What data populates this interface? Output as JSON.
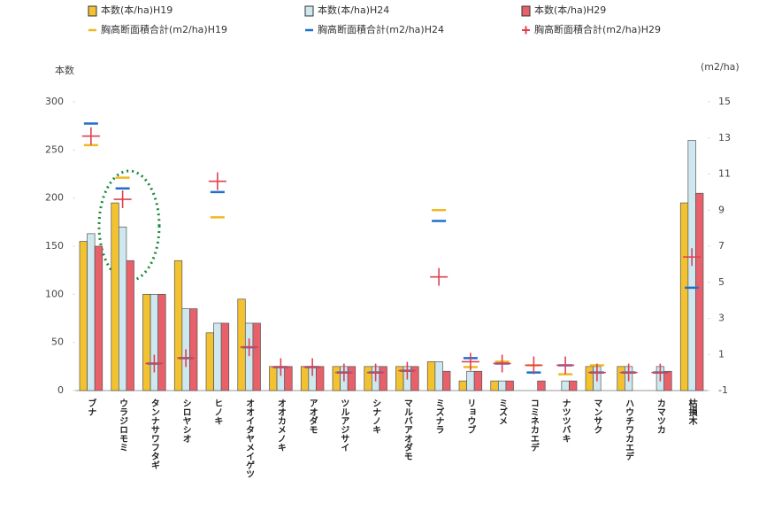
{
  "chart_data": {
    "type": "bar",
    "y_label": "本数",
    "y2_label": "(m2/ha)",
    "categories": [
      "ブナ",
      "ウラジロモミ",
      "タンナサワフタギ",
      "シロヤシオ",
      "ヒノキ",
      "オオイタヤメイゲツ",
      "オオカメノキ",
      "アオダモ",
      "ツルアジサイ",
      "シナノキ",
      "マルバアオダモ",
      "ミズナラ",
      "リョウブ",
      "ミズメ",
      "コミネカエデ",
      "ナツツバキ",
      "マンサク",
      "ハウチワカエデ",
      "カマツカ",
      "枯損木"
    ],
    "series": [
      {
        "name": "本数(本/ha)H19",
        "color": "#f2c230",
        "mark": "bar",
        "values": [
          155,
          195,
          100,
          135,
          60,
          95,
          25,
          25,
          25,
          25,
          25,
          30,
          10,
          10,
          0,
          0,
          25,
          25,
          0,
          195
        ]
      },
      {
        "name": "本数(本/ha)H24",
        "color": "#cfe7ef",
        "mark": "bar",
        "values": [
          163,
          170,
          100,
          85,
          70,
          70,
          25,
          25,
          25,
          25,
          25,
          30,
          20,
          10,
          0,
          10,
          25,
          25,
          25,
          260
        ]
      },
      {
        "name": "本数(本/ha)H29",
        "color": "#e8606a",
        "mark": "bar",
        "values": [
          150,
          135,
          100,
          85,
          70,
          70,
          25,
          25,
          25,
          25,
          25,
          20,
          20,
          10,
          10,
          10,
          0,
          0,
          20,
          205
        ]
      },
      {
        "name": "胸高断面積合計(m2/ha)H19",
        "color": "#f2b820",
        "mark": "dash",
        "axis": "y2",
        "values": [
          12.6,
          10.8,
          0.5,
          0.8,
          8.6,
          1.4,
          0.3,
          0.3,
          0.0,
          0.0,
          0.1,
          9.0,
          0.3,
          0.6,
          0.4,
          -0.1,
          0.4,
          0.0,
          0.0,
          4.7
        ]
      },
      {
        "name": "胸高断面積合計(m2/ha)H24",
        "color": "#1f6fd0",
        "mark": "dash",
        "axis": "y2",
        "values": [
          13.8,
          10.2,
          0.5,
          0.8,
          10.0,
          1.4,
          0.3,
          0.3,
          0.0,
          0.0,
          0.1,
          8.4,
          0.8,
          0.5,
          0.0,
          0.4,
          0.0,
          0.0,
          0.0,
          4.7
        ]
      },
      {
        "name": "胸高断面積合計(m2/ha)H29",
        "color": "#e04050",
        "mark": "plus",
        "axis": "y2",
        "values": [
          13.1,
          9.6,
          0.5,
          0.8,
          10.6,
          1.4,
          0.3,
          0.3,
          0.0,
          0.0,
          0.1,
          5.3,
          0.6,
          0.5,
          0.4,
          0.4,
          0.0,
          0.0,
          0.0,
          6.4
        ]
      }
    ],
    "ylim": [
      0,
      300
    ],
    "yticks": [
      0,
      50,
      100,
      150,
      200,
      250,
      300
    ],
    "y2lim": [
      -1,
      15
    ],
    "y2ticks": [
      -1,
      1,
      3,
      5,
      7,
      9,
      11,
      13,
      15
    ],
    "grid": false
  }
}
